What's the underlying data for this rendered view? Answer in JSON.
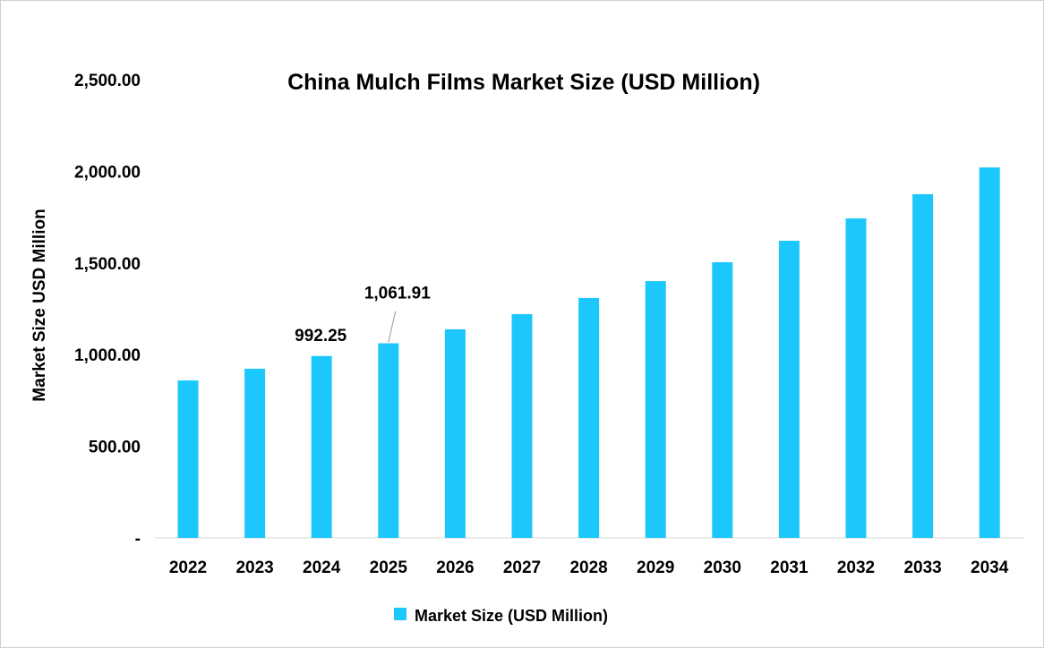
{
  "chart_data": {
    "type": "bar",
    "title": "China Mulch Films Market Size (USD Million)",
    "xlabel": "",
    "ylabel": "Market Size USD Million",
    "ylim": [
      0,
      2500
    ],
    "yticks": [
      0,
      500,
      1000,
      1500,
      2000,
      2500
    ],
    "ytick_labels": [
      "-",
      "500.00",
      "1,000.00",
      "1,500.00",
      "2,000.00",
      "2,500.00"
    ],
    "grid": false,
    "legend_position": "bottom",
    "categories": [
      "2022",
      "2023",
      "2024",
      "2025",
      "2026",
      "2027",
      "2028",
      "2029",
      "2030",
      "2031",
      "2032",
      "2033",
      "2034"
    ],
    "series": [
      {
        "name": "Market Size (USD Million)",
        "color": "#1CC8FB",
        "values": [
          859,
          923,
          992.25,
          1061.91,
          1138,
          1221,
          1309,
          1401,
          1504,
          1621,
          1743,
          1875,
          2021
        ]
      }
    ],
    "data_labels": [
      {
        "category": "2024",
        "text": "992.25"
      },
      {
        "category": "2025",
        "text": "1,061.91"
      }
    ]
  }
}
